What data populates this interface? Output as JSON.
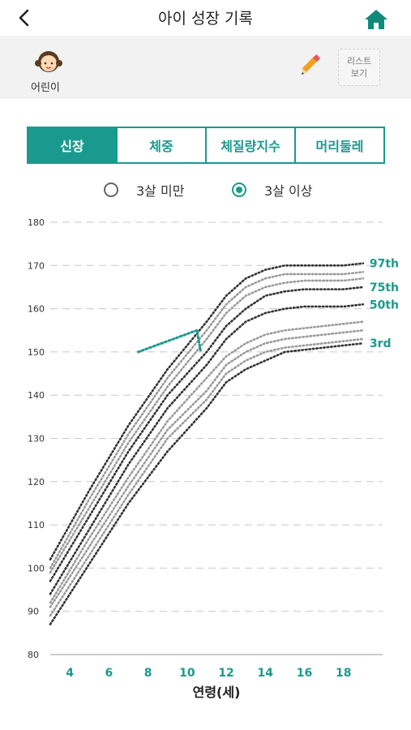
{
  "header": {
    "title": "아이 성장 기록",
    "back_icon": "back-arrow-icon",
    "home_icon": "home-icon",
    "accent": "#1a9a8e"
  },
  "profile": {
    "name": "어린이",
    "list_button": [
      "리스트",
      "보기"
    ]
  },
  "tabs": [
    {
      "label": "신장",
      "active": true
    },
    {
      "label": "체중",
      "active": false
    },
    {
      "label": "체질량지수",
      "active": false
    },
    {
      "label": "머리둘레",
      "active": false
    }
  ],
  "age_filter": [
    {
      "label": "3살 미만",
      "selected": false
    },
    {
      "label": "3살 이상",
      "selected": true
    }
  ],
  "chart_data": {
    "type": "line",
    "title": "",
    "xlabel": "연령(세)",
    "ylabel": "",
    "xlim": [
      3,
      20
    ],
    "ylim": [
      80,
      180
    ],
    "xticks": [
      4,
      6,
      8,
      10,
      12,
      14,
      16,
      18
    ],
    "yticks": [
      80,
      90,
      100,
      110,
      120,
      130,
      140,
      150,
      160,
      170,
      180
    ],
    "series": [
      {
        "name": "97th",
        "labeled": true,
        "x": [
          3,
          5,
          7,
          9,
          11,
          12,
          13,
          14,
          15,
          16,
          17,
          18,
          19
        ],
        "values": [
          102,
          118,
          133,
          146,
          157,
          163,
          167,
          169,
          170,
          170,
          170,
          170,
          170.5
        ]
      },
      {
        "name": "",
        "labeled": false,
        "x": [
          3,
          5,
          7,
          9,
          11,
          12,
          13,
          14,
          15,
          16,
          17,
          18,
          19
        ],
        "values": [
          100,
          116,
          131,
          144,
          155,
          161,
          165,
          167,
          168,
          168,
          168,
          168,
          168.5
        ]
      },
      {
        "name": "",
        "labeled": false,
        "x": [
          3,
          5,
          7,
          9,
          11,
          12,
          13,
          14,
          15,
          16,
          17,
          18,
          19
        ],
        "values": [
          99,
          114,
          129,
          142,
          153,
          159,
          163,
          165,
          166,
          166.5,
          166.5,
          166.5,
          167
        ]
      },
      {
        "name": "75th",
        "labeled": true,
        "x": [
          3,
          5,
          7,
          9,
          11,
          12,
          13,
          14,
          15,
          16,
          17,
          18,
          19
        ],
        "values": [
          97,
          112,
          127,
          140,
          150,
          156,
          160,
          163,
          164,
          164.5,
          164.5,
          164.5,
          165
        ]
      },
      {
        "name": "50th",
        "labeled": true,
        "x": [
          3,
          5,
          7,
          9,
          11,
          12,
          13,
          14,
          15,
          16,
          17,
          18,
          19
        ],
        "values": [
          94,
          109,
          124,
          137,
          147,
          153,
          157,
          159,
          160,
          160.5,
          160.5,
          160.5,
          161
        ]
      },
      {
        "name": "",
        "labeled": false,
        "x": [
          3,
          5,
          7,
          9,
          11,
          12,
          13,
          14,
          15,
          16,
          17,
          18,
          19
        ],
        "values": [
          92,
          107,
          121,
          134,
          144,
          149,
          152,
          154,
          155,
          155.5,
          156,
          156.5,
          157
        ]
      },
      {
        "name": "",
        "labeled": false,
        "x": [
          3,
          5,
          7,
          9,
          11,
          12,
          13,
          14,
          15,
          16,
          17,
          18,
          19
        ],
        "values": [
          91,
          105,
          119,
          132,
          141,
          147,
          150,
          152,
          153,
          153.5,
          154,
          154.5,
          155
        ]
      },
      {
        "name": "",
        "labeled": false,
        "x": [
          3,
          5,
          7,
          9,
          11,
          12,
          13,
          14,
          15,
          16,
          17,
          18,
          19
        ],
        "values": [
          89,
          103,
          117,
          130,
          139,
          145,
          148,
          150,
          151,
          151.5,
          152,
          152.5,
          153
        ]
      },
      {
        "name": "3rd",
        "labeled": true,
        "x": [
          3,
          5,
          7,
          9,
          11,
          12,
          13,
          14,
          15,
          16,
          17,
          18,
          19
        ],
        "values": [
          87,
          101,
          115,
          127,
          137,
          143,
          146,
          148,
          150,
          150.5,
          151,
          151.5,
          152
        ]
      }
    ],
    "child_series": {
      "x": [
        7.5,
        10.5,
        10.7
      ],
      "values": [
        150,
        155,
        150
      ]
    }
  }
}
